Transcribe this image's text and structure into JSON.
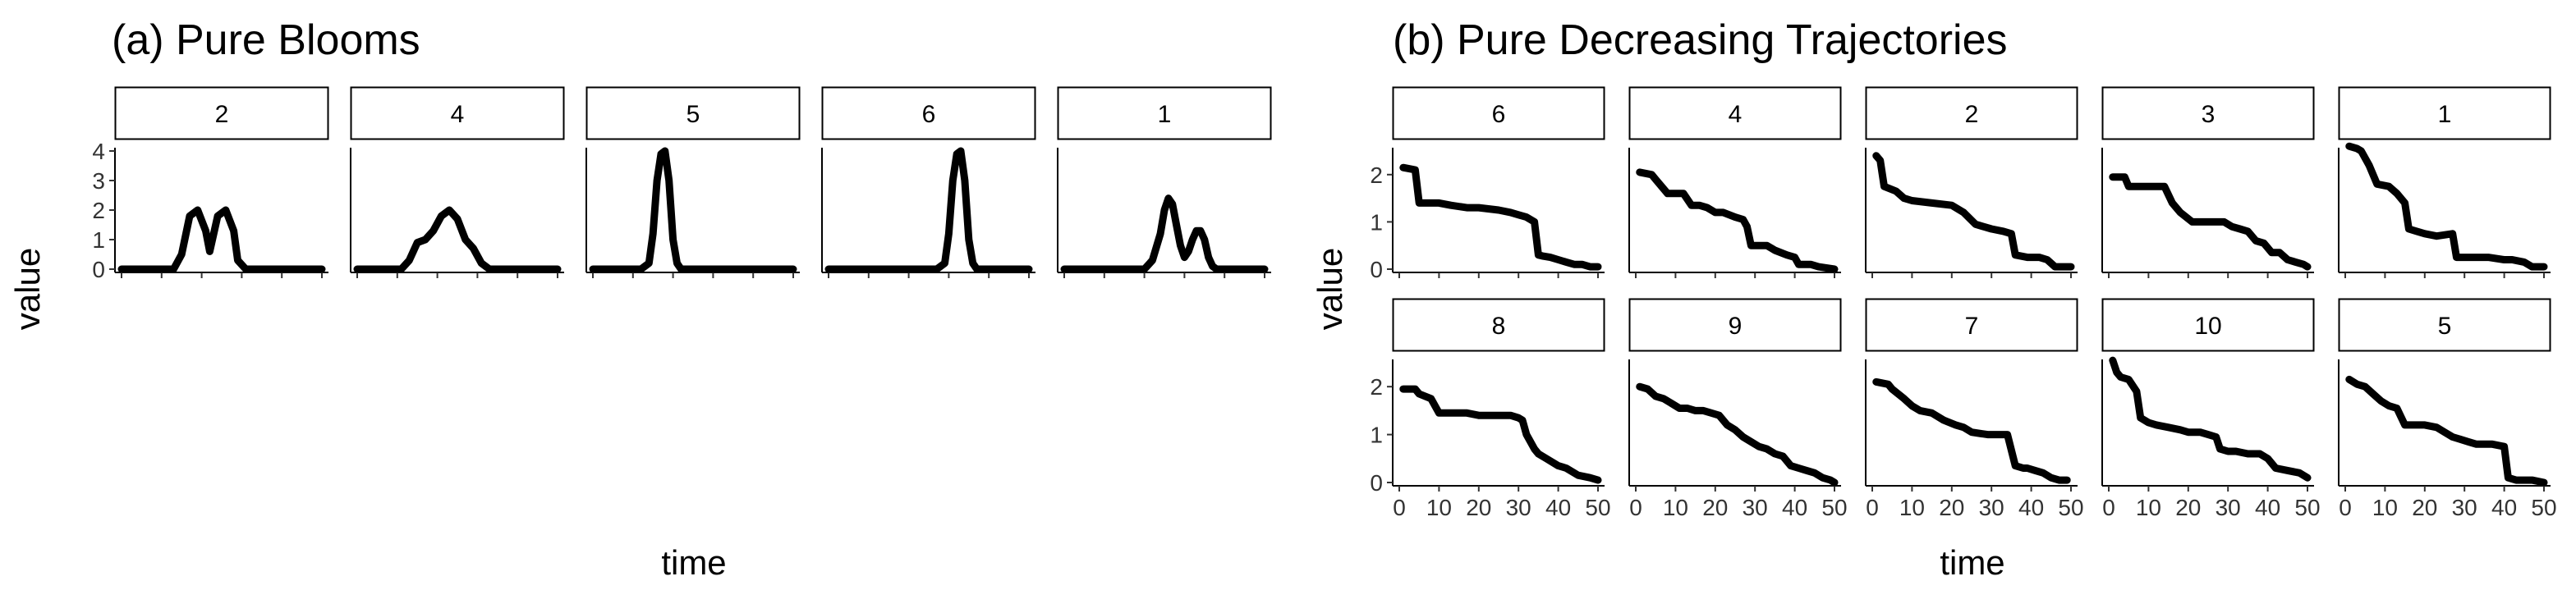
{
  "chart_data": [
    {
      "type": "line",
      "title": "(a) Pure Blooms",
      "xlabel": "time",
      "ylabel": "value",
      "xlim": [
        0,
        50
      ],
      "ylim": [
        0,
        4
      ],
      "x_ticks": [
        "0",
        "10",
        "20",
        "30",
        "40",
        "50"
      ],
      "y_ticks": [
        "0",
        "1",
        "2",
        "3",
        "4"
      ],
      "panels": [
        {
          "label": "2",
          "x": [
            0,
            13,
            15,
            17,
            19,
            21,
            22,
            24,
            26,
            28,
            29,
            31,
            50
          ],
          "y": [
            0,
            0,
            0.5,
            1.8,
            2.0,
            1.3,
            0.6,
            1.8,
            2.0,
            1.3,
            0.3,
            0,
            0
          ]
        },
        {
          "label": "4",
          "x": [
            0,
            11,
            13,
            15,
            17,
            19,
            21,
            23,
            25,
            27,
            29,
            31,
            33,
            50
          ],
          "y": [
            0,
            0,
            0.3,
            0.9,
            1.0,
            1.3,
            1.8,
            2.0,
            1.7,
            1.0,
            0.7,
            0.2,
            0,
            0
          ]
        },
        {
          "label": "5",
          "x": [
            0,
            12,
            14,
            15,
            16,
            17,
            18,
            19,
            20,
            21,
            22,
            24,
            50
          ],
          "y": [
            0,
            0,
            0.2,
            1.2,
            3.0,
            3.9,
            4.0,
            3.0,
            1.0,
            0.2,
            0,
            0,
            0
          ]
        },
        {
          "label": "6",
          "x": [
            0,
            27,
            29,
            30,
            31,
            32,
            33,
            34,
            35,
            36,
            37,
            39,
            50
          ],
          "y": [
            0,
            0,
            0.2,
            1.2,
            3.0,
            3.9,
            4.0,
            3.0,
            1.0,
            0.2,
            0,
            0,
            0
          ]
        },
        {
          "label": "1",
          "x": [
            0,
            20,
            22,
            24,
            25,
            26,
            27,
            28,
            29,
            30,
            31,
            32,
            33,
            34,
            35,
            36,
            37,
            38,
            50
          ],
          "y": [
            0,
            0,
            0.3,
            1.2,
            2.0,
            2.4,
            2.2,
            1.5,
            0.8,
            0.4,
            0.6,
            1.0,
            1.3,
            1.3,
            1.0,
            0.4,
            0.1,
            0,
            0
          ]
        }
      ]
    },
    {
      "type": "line",
      "title": "(b) Pure Decreasing Trajectories",
      "xlabel": "time",
      "ylabel": "value",
      "xlim": [
        0,
        50
      ],
      "ylim": [
        0,
        2.5
      ],
      "x_ticks": [
        "0",
        "10",
        "20",
        "30",
        "40",
        "50"
      ],
      "y_ticks": [
        "0",
        "1",
        "2"
      ],
      "panels": [
        {
          "label": "6",
          "x": [
            1,
            4,
            5,
            8,
            10,
            13,
            17,
            20,
            25,
            28,
            30,
            32,
            34,
            35,
            36,
            38,
            40,
            42,
            44,
            46,
            48,
            50
          ],
          "y": [
            2.15,
            2.1,
            1.4,
            1.4,
            1.4,
            1.35,
            1.3,
            1.3,
            1.25,
            1.2,
            1.15,
            1.1,
            1.0,
            0.3,
            0.28,
            0.25,
            0.2,
            0.15,
            0.1,
            0.1,
            0.05,
            0.05
          ]
        },
        {
          "label": "4",
          "x": [
            1,
            4,
            5,
            8,
            10,
            12,
            14,
            16,
            18,
            20,
            22,
            25,
            27,
            28,
            29,
            30,
            33,
            34,
            35,
            38,
            40,
            41,
            44,
            46,
            50
          ],
          "y": [
            2.05,
            2.0,
            1.9,
            1.6,
            1.6,
            1.6,
            1.35,
            1.35,
            1.3,
            1.2,
            1.2,
            1.1,
            1.05,
            0.9,
            0.5,
            0.5,
            0.5,
            0.45,
            0.4,
            0.3,
            0.25,
            0.1,
            0.1,
            0.05,
            0
          ]
        },
        {
          "label": "2",
          "x": [
            1,
            2,
            3,
            6,
            8,
            10,
            15,
            20,
            23,
            26,
            28,
            30,
            33,
            35,
            36,
            39,
            40,
            42,
            44,
            46,
            47,
            49,
            50
          ],
          "y": [
            2.4,
            2.3,
            1.75,
            1.65,
            1.5,
            1.45,
            1.4,
            1.35,
            1.2,
            0.95,
            0.9,
            0.85,
            0.8,
            0.75,
            0.3,
            0.25,
            0.25,
            0.25,
            0.2,
            0.05,
            0.05,
            0.05,
            0.05
          ]
        },
        {
          "label": "3",
          "x": [
            1,
            4,
            5,
            9,
            14,
            16,
            18,
            21,
            26,
            29,
            31,
            33,
            35,
            37,
            39,
            41,
            43,
            45,
            47,
            49,
            50
          ],
          "y": [
            1.95,
            1.95,
            1.75,
            1.75,
            1.75,
            1.4,
            1.2,
            1.0,
            1.0,
            1.0,
            0.9,
            0.85,
            0.8,
            0.6,
            0.55,
            0.35,
            0.35,
            0.2,
            0.15,
            0.1,
            0.05
          ]
        },
        {
          "label": "1",
          "x": [
            1,
            3,
            4,
            6,
            8,
            11,
            13,
            15,
            16,
            18,
            20,
            23,
            27,
            28,
            31,
            36,
            40,
            42,
            45,
            47,
            50
          ],
          "y": [
            2.6,
            2.55,
            2.5,
            2.2,
            1.8,
            1.75,
            1.6,
            1.4,
            0.85,
            0.8,
            0.75,
            0.7,
            0.75,
            0.25,
            0.25,
            0.25,
            0.2,
            0.2,
            0.15,
            0.05,
            0.05
          ]
        },
        {
          "label": "8",
          "x": [
            1,
            4,
            5,
            8,
            10,
            13,
            17,
            20,
            25,
            28,
            30,
            31,
            32,
            34,
            35,
            37,
            40,
            42,
            45,
            48,
            50
          ],
          "y": [
            1.95,
            1.95,
            1.85,
            1.75,
            1.45,
            1.45,
            1.45,
            1.4,
            1.4,
            1.4,
            1.35,
            1.3,
            1.0,
            0.7,
            0.6,
            0.5,
            0.35,
            0.3,
            0.15,
            0.1,
            0.05
          ]
        },
        {
          "label": "9",
          "x": [
            1,
            3,
            5,
            7,
            9,
            11,
            13,
            15,
            17,
            19,
            21,
            23,
            25,
            27,
            29,
            31,
            33,
            35,
            37,
            39,
            41,
            43,
            45,
            47,
            49,
            50
          ],
          "y": [
            2.0,
            1.95,
            1.8,
            1.75,
            1.65,
            1.55,
            1.55,
            1.5,
            1.5,
            1.45,
            1.4,
            1.2,
            1.1,
            0.95,
            0.85,
            0.75,
            0.7,
            0.6,
            0.55,
            0.35,
            0.3,
            0.25,
            0.2,
            0.1,
            0.05,
            0
          ]
        },
        {
          "label": "7",
          "x": [
            1,
            4,
            5,
            8,
            10,
            12,
            15,
            18,
            21,
            23,
            25,
            29,
            32,
            34,
            36,
            38,
            39,
            41,
            43,
            45,
            47,
            49
          ],
          "y": [
            2.1,
            2.05,
            1.95,
            1.75,
            1.6,
            1.5,
            1.45,
            1.3,
            1.2,
            1.15,
            1.05,
            1.0,
            1.0,
            1.0,
            0.35,
            0.3,
            0.3,
            0.25,
            0.2,
            0.1,
            0.05,
            0.05
          ]
        },
        {
          "label": "10",
          "x": [
            1,
            2,
            3,
            5,
            7,
            8,
            10,
            12,
            15,
            18,
            20,
            23,
            25,
            27,
            28,
            30,
            32,
            35,
            38,
            40,
            42,
            45,
            48,
            50
          ],
          "y": [
            2.55,
            2.3,
            2.2,
            2.15,
            1.9,
            1.35,
            1.25,
            1.2,
            1.15,
            1.1,
            1.05,
            1.05,
            1.0,
            0.95,
            0.7,
            0.65,
            0.65,
            0.6,
            0.6,
            0.5,
            0.3,
            0.25,
            0.2,
            0.1
          ]
        },
        {
          "label": "5",
          "x": [
            1,
            3,
            5,
            7,
            9,
            11,
            13,
            15,
            20,
            23,
            25,
            27,
            29,
            31,
            33,
            35,
            37,
            40,
            41,
            43,
            47,
            50
          ],
          "y": [
            2.15,
            2.05,
            2.0,
            1.85,
            1.7,
            1.6,
            1.55,
            1.2,
            1.2,
            1.15,
            1.05,
            0.95,
            0.9,
            0.85,
            0.8,
            0.8,
            0.8,
            0.75,
            0.1,
            0.05,
            0.05,
            0
          ]
        }
      ]
    }
  ]
}
